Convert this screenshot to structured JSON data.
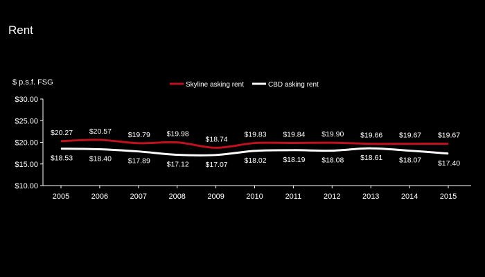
{
  "page": {
    "title": "Rent"
  },
  "chart_data": {
    "type": "line",
    "title": "",
    "ylabel": "$ p.s.f. FSG",
    "xlabel": "",
    "ylim": [
      10,
      30
    ],
    "y_ticks": [
      10,
      15,
      20,
      25,
      30
    ],
    "y_tick_labels": [
      "$10.00",
      "$15.00",
      "$20.00",
      "$25.00",
      "$30.00"
    ],
    "categories": [
      "2005",
      "2006",
      "2007",
      "2008",
      "2009",
      "2010",
      "2011",
      "2012",
      "2013",
      "2014",
      "2015"
    ],
    "legend_position": "top-center",
    "grid": false,
    "series": [
      {
        "name": "Skyline asking rent",
        "color": "#c0101e",
        "label_position": "above",
        "values": [
          20.27,
          20.57,
          19.79,
          19.98,
          18.74,
          19.83,
          19.84,
          19.9,
          19.66,
          19.67,
          19.67
        ],
        "labels": [
          "$20.27",
          "$20.57",
          "$19.79",
          "$19.98",
          "$18.74",
          "$19.83",
          "$19.84",
          "$19.90",
          "$19.66",
          "$19.67",
          "$19.67"
        ]
      },
      {
        "name": "CBD asking rent",
        "color": "#ffffff",
        "label_position": "below",
        "values": [
          18.53,
          18.4,
          17.89,
          17.12,
          17.07,
          18.02,
          18.19,
          18.08,
          18.61,
          18.07,
          17.4
        ],
        "labels": [
          "$18.53",
          "$18.40",
          "$17.89",
          "$17.12",
          "$17.07",
          "$18.02",
          "$18.19",
          "$18.08",
          "$18.61",
          "$18.07",
          "$17.40"
        ]
      }
    ]
  }
}
